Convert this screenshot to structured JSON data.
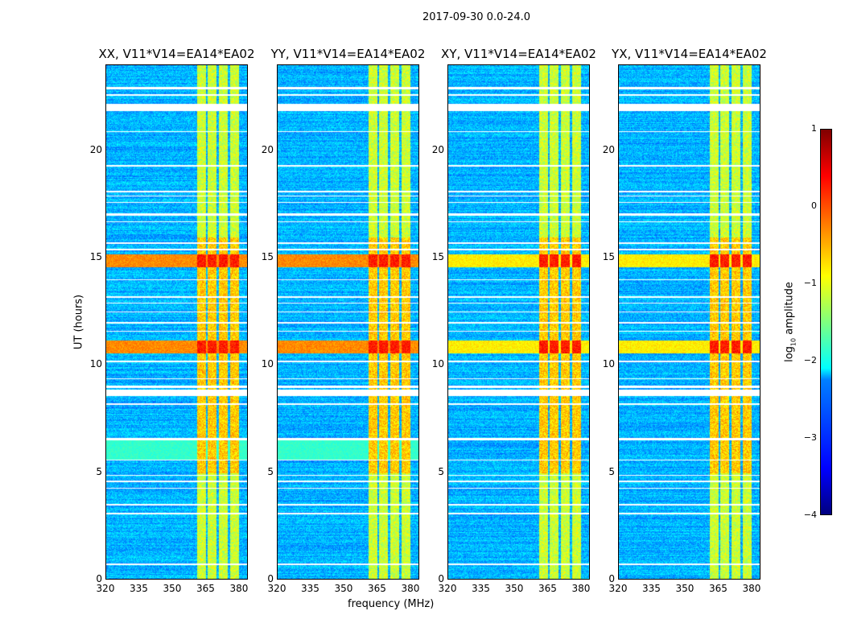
{
  "suptitle": "2017-09-30 0.0-24.0",
  "chart_data": {
    "type": "heatmap",
    "title": "2017-09-30 0.0-24.0",
    "xlabel": "frequency (MHz)",
    "ylabel": "UT (hours)",
    "xlim": [
      320,
      384
    ],
    "ylim": [
      0,
      24
    ],
    "xticks": [
      "320",
      "335",
      "350",
      "365",
      "380"
    ],
    "xtick_values": [
      320,
      335,
      350,
      365,
      380
    ],
    "yticks": [
      "0",
      "5",
      "10",
      "15",
      "20"
    ],
    "ytick_values": [
      0,
      5,
      10,
      15,
      20
    ],
    "panels": [
      {
        "title": "XX, V11*V14=EA14*EA02",
        "pol": "XX",
        "low_band_5_6": true
      },
      {
        "title": "YY, V11*V14=EA14*EA02",
        "pol": "YY",
        "low_band_5_6": true
      },
      {
        "title": "XY, V11*V14=EA14*EA02",
        "pol": "XY",
        "low_band_5_6": false
      },
      {
        "title": "YX, V11*V14=EA14*EA02",
        "pol": "YX",
        "low_band_5_6": false
      }
    ],
    "rfi_columns_mhz": [
      [
        360.5,
        364.5
      ],
      [
        365.5,
        369.5
      ],
      [
        370.5,
        374.5
      ],
      [
        375.5,
        379.5
      ]
    ],
    "strong_rfi_hours": [
      [
        10.6,
        11.2
      ],
      [
        14.6,
        15.2
      ]
    ],
    "flagged_hours": [
      [
        21.9,
        22.2
      ],
      [
        22.9,
        23.0
      ],
      [
        22.6,
        22.65
      ],
      [
        20.9,
        20.95
      ],
      [
        19.3,
        19.35
      ],
      [
        18.1,
        18.15
      ],
      [
        17.9,
        17.95
      ],
      [
        17.6,
        17.65
      ],
      [
        17.0,
        17.1
      ],
      [
        16.7,
        16.75
      ],
      [
        15.7,
        15.75
      ],
      [
        15.4,
        15.45
      ],
      [
        14.0,
        14.05
      ],
      [
        13.2,
        13.25
      ],
      [
        12.9,
        12.95
      ],
      [
        12.5,
        12.55
      ],
      [
        12.0,
        12.05
      ],
      [
        11.6,
        11.65
      ],
      [
        10.2,
        10.25
      ],
      [
        9.4,
        9.45
      ],
      [
        9.0,
        9.1
      ],
      [
        8.6,
        8.9
      ],
      [
        8.2,
        8.25
      ],
      [
        6.55,
        6.65
      ],
      [
        5.6,
        5.65
      ],
      [
        4.9,
        4.95
      ],
      [
        4.6,
        4.65
      ],
      [
        4.3,
        4.35
      ],
      [
        3.5,
        3.6
      ],
      [
        3.1,
        3.15
      ],
      [
        0.75,
        0.8
      ]
    ],
    "colorbar": {
      "label": "log10 amplitude",
      "label_main": "log",
      "label_sub": "10",
      "label_rest": " amplitude",
      "ticks": [
        "1",
        "0",
        "−1",
        "−2",
        "−3",
        "−4"
      ],
      "range": [
        -4,
        1
      ],
      "colormap": "jet"
    }
  }
}
